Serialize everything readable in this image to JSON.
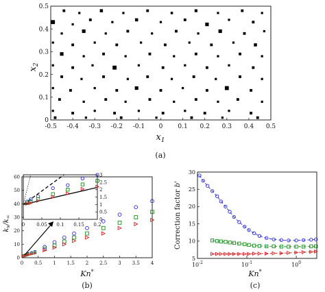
{
  "chart_data": [
    {
      "type": "scatter",
      "panel_label": "(a)",
      "xlabel": "x_1",
      "ylabel": "x_2",
      "xlim": [
        -0.5,
        0.5
      ],
      "ylim": [
        0,
        0.5
      ],
      "xticks": [
        "-0.5",
        "-0.4",
        "-0.3",
        "-0.2",
        "-0.1",
        "0",
        "0.1",
        "0.2",
        "0.3",
        "0.4",
        "0.5"
      ],
      "yticks": [
        "0",
        "0.1",
        "0.2",
        "0.3",
        "0.4",
        "0.5"
      ],
      "marker": "square",
      "color": "#000000",
      "points": [
        [
          -0.44,
          0.48,
          0.012
        ],
        [
          -0.37,
          0.47,
          0.01
        ],
        [
          -0.27,
          0.48,
          0.014
        ],
        [
          -0.17,
          0.47,
          0.01
        ],
        [
          -0.06,
          0.48,
          0.012
        ],
        [
          0.05,
          0.47,
          0.011
        ],
        [
          0.16,
          0.48,
          0.013
        ],
        [
          0.26,
          0.47,
          0.01
        ],
        [
          0.37,
          0.48,
          0.012
        ],
        [
          0.46,
          0.47,
          0.01
        ],
        [
          -0.49,
          0.43,
          0.018
        ],
        [
          -0.4,
          0.42,
          0.01
        ],
        [
          -0.32,
          0.44,
          0.012
        ],
        [
          -0.22,
          0.43,
          0.01
        ],
        [
          -0.11,
          0.44,
          0.014
        ],
        [
          0.0,
          0.43,
          0.01
        ],
        [
          0.11,
          0.44,
          0.012
        ],
        [
          0.21,
          0.42,
          0.016
        ],
        [
          0.31,
          0.44,
          0.01
        ],
        [
          0.42,
          0.43,
          0.012
        ],
        [
          -0.45,
          0.38,
          0.01
        ],
        [
          -0.35,
          0.39,
          0.016
        ],
        [
          -0.25,
          0.38,
          0.01
        ],
        [
          -0.15,
          0.39,
          0.012
        ],
        [
          -0.04,
          0.38,
          0.01
        ],
        [
          0.07,
          0.39,
          0.012
        ],
        [
          0.17,
          0.38,
          0.01
        ],
        [
          0.27,
          0.39,
          0.016
        ],
        [
          0.38,
          0.38,
          0.012
        ],
        [
          0.47,
          0.39,
          0.01
        ],
        [
          -0.49,
          0.34,
          0.01
        ],
        [
          -0.4,
          0.33,
          0.012
        ],
        [
          -0.3,
          0.34,
          0.01
        ],
        [
          -0.2,
          0.33,
          0.012
        ],
        [
          -0.09,
          0.34,
          0.01
        ],
        [
          0.02,
          0.33,
          0.012
        ],
        [
          0.13,
          0.34,
          0.01
        ],
        [
          0.23,
          0.33,
          0.012
        ],
        [
          0.33,
          0.34,
          0.01
        ],
        [
          0.43,
          0.33,
          0.014
        ],
        [
          -0.45,
          0.29,
          0.016
        ],
        [
          -0.35,
          0.28,
          0.01
        ],
        [
          -0.26,
          0.29,
          0.012
        ],
        [
          -0.16,
          0.28,
          0.01
        ],
        [
          -0.05,
          0.29,
          0.012
        ],
        [
          0.06,
          0.28,
          0.01
        ],
        [
          0.16,
          0.29,
          0.012
        ],
        [
          0.26,
          0.28,
          0.01
        ],
        [
          0.36,
          0.29,
          0.012
        ],
        [
          0.46,
          0.28,
          0.01
        ],
        [
          -0.49,
          0.24,
          0.01
        ],
        [
          -0.4,
          0.23,
          0.012
        ],
        [
          -0.31,
          0.24,
          0.01
        ],
        [
          -0.21,
          0.23,
          0.018
        ],
        [
          -0.1,
          0.24,
          0.01
        ],
        [
          0.01,
          0.23,
          0.012
        ],
        [
          0.11,
          0.24,
          0.01
        ],
        [
          0.21,
          0.23,
          0.012
        ],
        [
          0.31,
          0.24,
          0.01
        ],
        [
          0.42,
          0.23,
          0.012
        ],
        [
          -0.45,
          0.19,
          0.012
        ],
        [
          -0.36,
          0.18,
          0.01
        ],
        [
          -0.26,
          0.19,
          0.012
        ],
        [
          -0.15,
          0.18,
          0.01
        ],
        [
          -0.06,
          0.19,
          0.012
        ],
        [
          0.05,
          0.18,
          0.01
        ],
        [
          0.15,
          0.19,
          0.012
        ],
        [
          0.25,
          0.18,
          0.01
        ],
        [
          0.36,
          0.19,
          0.012
        ],
        [
          0.46,
          0.18,
          0.01
        ],
        [
          -0.49,
          0.14,
          0.01
        ],
        [
          -0.41,
          0.13,
          0.012
        ],
        [
          -0.3,
          0.14,
          0.01
        ],
        [
          -0.2,
          0.13,
          0.012
        ],
        [
          -0.11,
          0.14,
          0.016
        ],
        [
          0.0,
          0.13,
          0.012
        ],
        [
          0.1,
          0.14,
          0.01
        ],
        [
          0.21,
          0.13,
          0.012
        ],
        [
          0.3,
          0.14,
          0.018
        ],
        [
          0.41,
          0.13,
          0.012
        ],
        [
          -0.46,
          0.09,
          0.012
        ],
        [
          -0.35,
          0.08,
          0.01
        ],
        [
          -0.25,
          0.09,
          0.012
        ],
        [
          -0.16,
          0.08,
          0.01
        ],
        [
          -0.05,
          0.09,
          0.012
        ],
        [
          0.06,
          0.08,
          0.01
        ],
        [
          0.16,
          0.09,
          0.012
        ],
        [
          0.26,
          0.08,
          0.01
        ],
        [
          0.35,
          0.09,
          0.012
        ],
        [
          0.46,
          0.08,
          0.01
        ],
        [
          -0.49,
          0.04,
          0.01
        ],
        [
          -0.4,
          0.03,
          0.012
        ],
        [
          -0.3,
          0.04,
          0.01
        ],
        [
          -0.21,
          0.03,
          0.012
        ],
        [
          -0.1,
          0.04,
          0.01
        ],
        [
          0.01,
          0.03,
          0.012
        ],
        [
          0.11,
          0.04,
          0.01
        ],
        [
          0.2,
          0.03,
          0.012
        ],
        [
          0.31,
          0.04,
          0.01
        ],
        [
          0.41,
          0.03,
          0.012
        ],
        [
          -0.48,
          0.01,
          0.012
        ],
        [
          -0.34,
          0.01,
          0.01
        ],
        [
          -0.18,
          0.01,
          0.012
        ],
        [
          -0.02,
          0.01,
          0.01
        ],
        [
          0.14,
          0.01,
          0.012
        ],
        [
          0.28,
          0.01,
          0.01
        ],
        [
          0.44,
          0.01,
          0.012
        ]
      ]
    },
    {
      "type": "scatter",
      "panel_label": "(b)",
      "xlabel": "Kn*",
      "ylabel": "k_x/k_∞",
      "xlim": [
        0,
        4
      ],
      "ylim": [
        0,
        60
      ],
      "xticks": [
        "0",
        "0.5",
        "1",
        "1.5",
        "2",
        "2.5",
        "3",
        "3.5",
        "4"
      ],
      "yticks": [
        "0",
        "10",
        "20",
        "30",
        "40",
        "50",
        "60"
      ],
      "series": [
        {
          "marker": "circle",
          "color": "#2a2ad0",
          "x": [
            0.05,
            0.1,
            0.15,
            0.2,
            0.3,
            0.4,
            0.7,
            1.0,
            1.3,
            1.6,
            2.0,
            2.5,
            3.0,
            3.5,
            4.0
          ],
          "y": [
            1.5,
            2.0,
            2.5,
            3.0,
            3.8,
            4.6,
            8.0,
            11.5,
            15.0,
            18.0,
            22.0,
            27.0,
            32.0,
            37.5,
            42.0
          ]
        },
        {
          "marker": "square",
          "color": "#1a8a1a",
          "x": [
            0.05,
            0.1,
            0.15,
            0.2,
            0.3,
            0.4,
            0.7,
            1.0,
            1.3,
            1.6,
            2.0,
            2.5,
            3.0,
            3.5,
            4.0
          ],
          "y": [
            1.4,
            1.8,
            2.2,
            2.6,
            3.2,
            3.9,
            6.5,
            9.0,
            12.0,
            15.0,
            18.0,
            22.0,
            26.0,
            30.0,
            34.0
          ]
        },
        {
          "marker": "triangle-right",
          "color": "#d02020",
          "x": [
            0.05,
            0.1,
            0.15,
            0.2,
            0.3,
            0.4,
            0.7,
            1.0,
            1.3,
            1.6,
            2.0,
            2.5,
            3.0,
            3.5,
            4.0
          ],
          "y": [
            1.3,
            1.6,
            1.9,
            2.2,
            2.8,
            3.3,
            5.5,
            7.5,
            10.0,
            12.5,
            15.0,
            18.0,
            22.0,
            25.0,
            28.0
          ]
        }
      ],
      "inset": {
        "xlim": [
          0,
          0.2
        ],
        "ylim": [
          0,
          3
        ],
        "xticks": [
          "0",
          "0.05",
          "0.1",
          "0.15",
          "0.2"
        ],
        "yticks": [
          "0",
          "0.5",
          "1",
          "1.5",
          "2",
          "2.5",
          "3"
        ],
        "series": [
          {
            "marker": "circle",
            "color": "#2a2ad0",
            "x": [
              0.01,
              0.02,
              0.04,
              0.08,
              0.12,
              0.16,
              0.2
            ],
            "y": [
              1.2,
              1.35,
              1.55,
              2.1,
              2.3,
              2.75,
              3.0
            ]
          },
          {
            "marker": "square",
            "color": "#1a8a1a",
            "x": [
              0.01,
              0.02,
              0.04,
              0.08,
              0.12,
              0.16,
              0.2
            ],
            "y": [
              1.1,
              1.2,
              1.35,
              1.7,
              2.0,
              2.35,
              2.6
            ]
          },
          {
            "marker": "triangle-right",
            "color": "#d02020",
            "x": [
              0.01,
              0.02,
              0.04,
              0.08,
              0.12,
              0.16,
              0.2
            ],
            "y": [
              1.05,
              1.1,
              1.25,
              1.5,
              1.75,
              2.05,
              2.2
            ]
          }
        ]
      }
    },
    {
      "type": "line",
      "panel_label": "(c)",
      "xlabel": "Kn*",
      "ylabel": "Correction factor b'",
      "xscale": "log",
      "xlim": [
        0.01,
        2.6
      ],
      "ylim": [
        5,
        30
      ],
      "xticks": [
        {
          "v": 0.01,
          "label": "10",
          "exp": "-2"
        },
        {
          "v": 0.1,
          "label": "10",
          "exp": "-1"
        },
        {
          "v": 1,
          "label": "10",
          "exp": "0"
        }
      ],
      "yticks": [
        "5",
        "10",
        "15",
        "20",
        "25",
        "30"
      ],
      "series": [
        {
          "marker": "circle",
          "color": "#2a2ad0",
          "x": [
            0.011,
            0.013,
            0.016,
            0.02,
            0.025,
            0.03,
            0.037,
            0.045,
            0.055,
            0.07,
            0.09,
            0.11,
            0.14,
            0.18,
            0.25,
            0.35,
            0.5,
            0.7,
            1.0,
            1.4,
            2.0,
            2.5
          ],
          "y": [
            29.0,
            27.5,
            26.0,
            24.5,
            23.0,
            21.5,
            20.0,
            18.5,
            17.0,
            15.5,
            14.2,
            13.2,
            12.3,
            11.5,
            10.9,
            10.5,
            10.3,
            10.2,
            10.2,
            10.3,
            10.4,
            10.5
          ]
        },
        {
          "marker": "square",
          "color": "#1a8a1a",
          "x": [
            0.02,
            0.025,
            0.03,
            0.037,
            0.045,
            0.055,
            0.07,
            0.09,
            0.11,
            0.14,
            0.18,
            0.25,
            0.35,
            0.5,
            0.7,
            1.0,
            1.4,
            2.0,
            2.5
          ],
          "y": [
            10.2,
            10.0,
            9.9,
            9.8,
            9.6,
            9.5,
            9.3,
            9.1,
            8.9,
            8.7,
            8.6,
            8.5,
            8.5,
            8.4,
            8.4,
            8.4,
            8.4,
            8.5,
            8.5
          ]
        },
        {
          "marker": "triangle-right",
          "color": "#d02020",
          "x": [
            0.02,
            0.025,
            0.03,
            0.037,
            0.045,
            0.055,
            0.07,
            0.09,
            0.11,
            0.14,
            0.18,
            0.25,
            0.35,
            0.5,
            0.7,
            1.0,
            1.4,
            2.0,
            2.5
          ],
          "y": [
            6.3,
            6.3,
            6.3,
            6.3,
            6.3,
            6.3,
            6.3,
            6.3,
            6.3,
            6.4,
            6.4,
            6.4,
            6.5,
            6.5,
            6.6,
            6.7,
            6.8,
            6.9,
            7.0
          ]
        }
      ]
    }
  ]
}
